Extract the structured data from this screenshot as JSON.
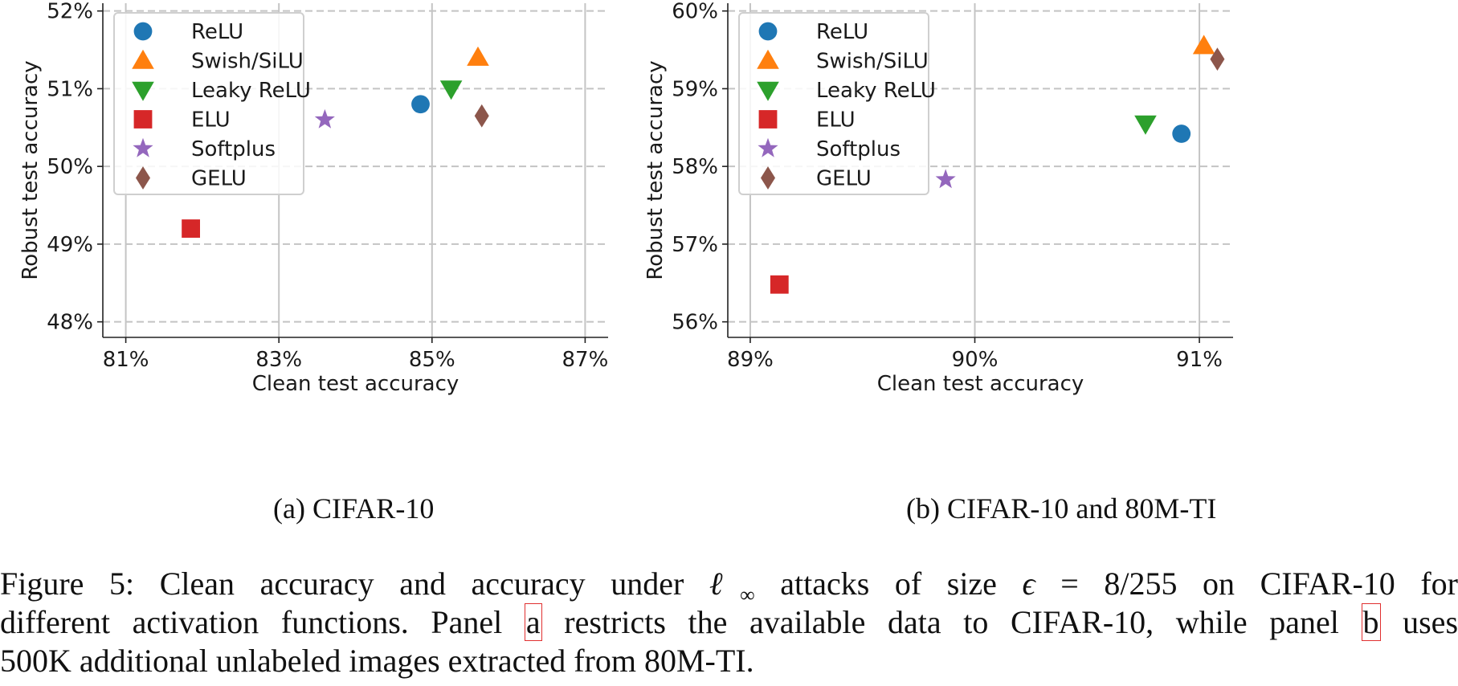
{
  "chart_data": [
    {
      "type": "scatter",
      "panel_caption": "(a) CIFAR-10",
      "xlabel": "Clean test accuracy",
      "ylabel": "Robust test accuracy",
      "xlim": [
        80.7,
        87.3
      ],
      "ylim": [
        47.8,
        52.1
      ],
      "xticks": [
        81,
        83,
        85,
        87
      ],
      "xtick_labels": [
        "81%",
        "83%",
        "85%",
        "87%"
      ],
      "yticks": [
        48,
        49,
        50,
        51,
        52
      ],
      "ytick_labels": [
        "48%",
        "49%",
        "50%",
        "51%",
        "52%"
      ],
      "grid": "x solid, y dashed",
      "legend_position": "top-left",
      "series": [
        {
          "name": "ReLU",
          "marker": "circle",
          "color": "#1f77b4",
          "x": 84.85,
          "y": 50.8
        },
        {
          "name": "Swish/SiLU",
          "marker": "triangle-up",
          "color": "#ff7f0e",
          "x": 85.6,
          "y": 51.4
        },
        {
          "name": "Leaky ReLU",
          "marker": "triangle-down",
          "color": "#2ca02c",
          "x": 85.25,
          "y": 51.0
        },
        {
          "name": "ELU",
          "marker": "square",
          "color": "#d62728",
          "x": 81.85,
          "y": 49.2
        },
        {
          "name": "Softplus",
          "marker": "star",
          "color": "#9467bd",
          "x": 83.6,
          "y": 50.6
        },
        {
          "name": "GELU",
          "marker": "diamond",
          "color": "#8c564b",
          "x": 85.65,
          "y": 50.65
        }
      ]
    },
    {
      "type": "scatter",
      "panel_caption": "(b) CIFAR-10 and 80M-TI",
      "xlabel": "Clean test accuracy",
      "ylabel": "Robust test accuracy",
      "xlim": [
        88.9,
        91.15
      ],
      "ylim": [
        55.8,
        60.1
      ],
      "xticks": [
        89,
        90,
        91
      ],
      "xtick_labels": [
        "89%",
        "90%",
        "91%"
      ],
      "yticks": [
        56,
        57,
        58,
        59,
        60
      ],
      "ytick_labels": [
        "56%",
        "57%",
        "58%",
        "59%",
        "60%"
      ],
      "grid": "x solid, y dashed",
      "legend_position": "top-left",
      "series": [
        {
          "name": "ReLU",
          "marker": "circle",
          "color": "#1f77b4",
          "x": 90.92,
          "y": 58.42
        },
        {
          "name": "Swish/SiLU",
          "marker": "triangle-up",
          "color": "#ff7f0e",
          "x": 91.02,
          "y": 59.55
        },
        {
          "name": "Leaky ReLU",
          "marker": "triangle-down",
          "color": "#2ca02c",
          "x": 90.76,
          "y": 58.55
        },
        {
          "name": "ELU",
          "marker": "square",
          "color": "#d62728",
          "x": 89.13,
          "y": 56.48
        },
        {
          "name": "Softplus",
          "marker": "star",
          "color": "#9467bd",
          "x": 89.87,
          "y": 57.83
        },
        {
          "name": "GELU",
          "marker": "diamond",
          "color": "#8c564b",
          "x": 91.08,
          "y": 59.38
        }
      ]
    }
  ],
  "captions": {
    "panel_a": "(a) CIFAR-10",
    "panel_b": "(b) CIFAR-10 and 80M-TI",
    "figure_line1": "Figure 5: Clean accuracy and accuracy under ℓ∞ attacks of size ϵ = 8/255 on CIFAR-10 for",
    "figure_line2": "different activation functions. Panel a restricts the available data to CIFAR-10, while panel b uses",
    "figure_line3": "500K additional unlabeled images extracted from 80M-TI."
  }
}
